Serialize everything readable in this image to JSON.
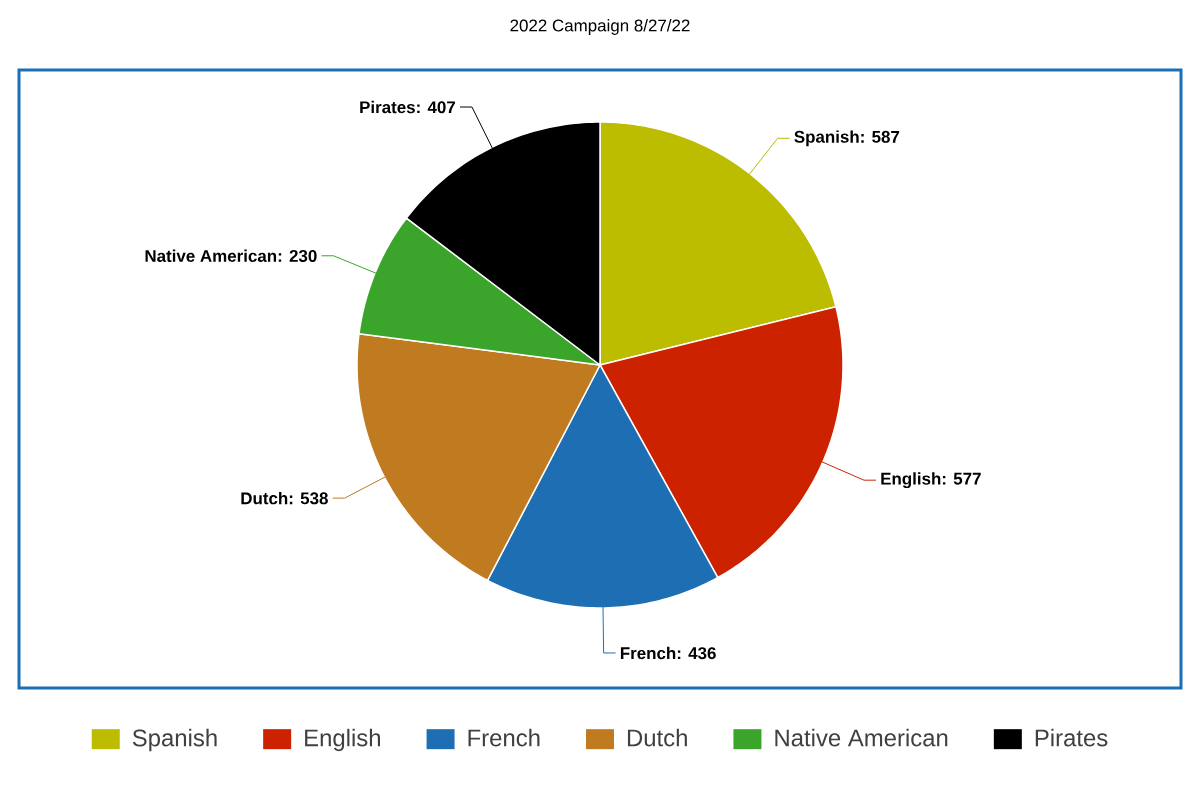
{
  "chart_data": {
    "type": "pie",
    "title": "2022 Campaign 8/27/22",
    "categories": [
      "Spanish",
      "English",
      "French",
      "Dutch",
      "Native American",
      "Pirates"
    ],
    "values": [
      587,
      577,
      436,
      538,
      230,
      407
    ],
    "colors": [
      "#bcbc00",
      "#cc2200",
      "#1e6eb4",
      "#c07a20",
      "#3aa52a",
      "#000000"
    ],
    "value_labels": [
      ": 587",
      ": 577",
      ": 436",
      ": 538",
      ": 230",
      ": 407"
    ],
    "legend": "bottom"
  }
}
